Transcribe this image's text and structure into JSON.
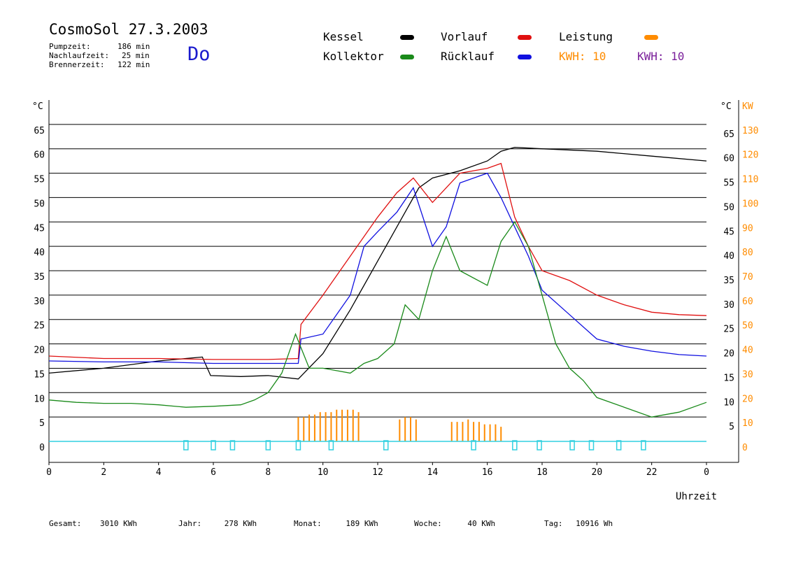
{
  "header": {
    "title": "CosmoSol 27.3.2003",
    "stats": [
      {
        "label": "Pumpzeit:",
        "value": "186 min"
      },
      {
        "label": "Nachlaufzeit:",
        "value": "25 min"
      },
      {
        "label": "Brennerzeit:",
        "value": "122 min"
      }
    ],
    "weekday": "Do"
  },
  "legend": {
    "kessel": "Kessel",
    "kollektor": "Kollektor",
    "vorlauf": "Vorlauf",
    "ruecklauf": "Rücklauf",
    "leistung": "Leistung",
    "kwh1_label": "KWH:",
    "kwh1_value": "10",
    "kwh2_label": "KWH:",
    "kwh2_value": "10",
    "colors": {
      "kessel": "#000000",
      "kollektor": "#1a8a1a",
      "vorlauf": "#e01010",
      "ruecklauf": "#1010e0",
      "leistung": "#ff8c00",
      "kwh2": "#7a1f9a",
      "pump": "#30d0e0"
    }
  },
  "footer": [
    {
      "label": "Gesamt:",
      "value": "3010 KWh"
    },
    {
      "label": "Jahr:",
      "value": "278 KWh"
    },
    {
      "label": "Monat:",
      "value": "189 KWh"
    },
    {
      "label": "Woche:",
      "value": "40 KWh"
    },
    {
      "label": "Tag:",
      "value": "10916 Wh"
    }
  ],
  "chart_data": {
    "type": "line",
    "xlabel": "Uhrzeit",
    "xlim": [
      0,
      24
    ],
    "x_ticks": [
      "0",
      "2",
      "4",
      "6",
      "8",
      "10",
      "12",
      "14",
      "16",
      "18",
      "20",
      "22",
      "0"
    ],
    "y_left_unit": "°C",
    "y_right_unit": "°C",
    "y_power_unit": "KW",
    "ylim": [
      -4.3,
      70
    ],
    "y_ticks": [
      0,
      5,
      10,
      15,
      20,
      25,
      30,
      35,
      40,
      45,
      50,
      55,
      60,
      65
    ],
    "y_left_labels": [
      "0",
      "5",
      "10",
      "15",
      "20",
      "25",
      "30",
      "35",
      "40",
      "45",
      "50",
      "55",
      "60",
      "65"
    ],
    "y_right_labels": [
      "5",
      "10",
      "15",
      "20",
      "25",
      "30",
      "35",
      "40",
      "45",
      "50",
      "55",
      "60",
      "65"
    ],
    "y_power_labels": [
      "0",
      "10",
      "20",
      "30",
      "40",
      "50",
      "60",
      "70",
      "80",
      "90",
      "100",
      "110",
      "120",
      "130"
    ],
    "grid": true,
    "series": [
      {
        "name": "Kessel",
        "key": "kessel",
        "points": [
          [
            0,
            14
          ],
          [
            2,
            15
          ],
          [
            4,
            16.5
          ],
          [
            5.6,
            17.3
          ],
          [
            5.9,
            13.5
          ],
          [
            7,
            13.3
          ],
          [
            8,
            13.5
          ],
          [
            9.1,
            12.8
          ],
          [
            10,
            18
          ],
          [
            11,
            27
          ],
          [
            12,
            37
          ],
          [
            12.5,
            42
          ],
          [
            13,
            47
          ],
          [
            13.5,
            52
          ],
          [
            14,
            54
          ],
          [
            15,
            55.5
          ],
          [
            16,
            57.5
          ],
          [
            16.5,
            59.5
          ],
          [
            17,
            60.3
          ],
          [
            18,
            60
          ],
          [
            20,
            59.5
          ],
          [
            22,
            58.5
          ],
          [
            24,
            57.5
          ]
        ]
      },
      {
        "name": "Vorlauf",
        "key": "vorlauf",
        "points": [
          [
            0,
            17.5
          ],
          [
            2,
            17
          ],
          [
            4,
            17
          ],
          [
            6,
            16.8
          ],
          [
            8,
            16.8
          ],
          [
            9.1,
            17
          ],
          [
            9.2,
            24
          ],
          [
            10,
            30
          ],
          [
            11,
            38
          ],
          [
            12,
            46
          ],
          [
            12.7,
            51
          ],
          [
            13.3,
            54
          ],
          [
            14,
            49
          ],
          [
            15,
            55
          ],
          [
            16,
            56
          ],
          [
            16.5,
            57
          ],
          [
            17,
            46
          ],
          [
            17.5,
            40
          ],
          [
            18,
            35
          ],
          [
            19,
            33
          ],
          [
            20,
            30
          ],
          [
            21,
            28
          ],
          [
            22,
            26.5
          ],
          [
            23,
            26
          ],
          [
            24,
            25.8
          ]
        ]
      },
      {
        "name": "Rücklauf",
        "key": "ruecklauf",
        "points": [
          [
            0,
            16.5
          ],
          [
            2,
            16.3
          ],
          [
            4,
            16.3
          ],
          [
            6,
            16
          ],
          [
            8,
            16
          ],
          [
            9.1,
            16
          ],
          [
            9.2,
            21
          ],
          [
            10,
            22
          ],
          [
            11,
            30
          ],
          [
            11.5,
            40
          ],
          [
            12,
            43
          ],
          [
            12.7,
            47
          ],
          [
            13.3,
            52
          ],
          [
            14,
            40
          ],
          [
            14.5,
            44
          ],
          [
            15,
            53
          ],
          [
            16,
            55
          ],
          [
            16.5,
            50
          ],
          [
            17,
            44
          ],
          [
            17.5,
            38
          ],
          [
            18,
            31
          ],
          [
            19,
            26
          ],
          [
            20,
            21
          ],
          [
            21,
            19.5
          ],
          [
            22,
            18.5
          ],
          [
            23,
            17.8
          ],
          [
            24,
            17.5
          ]
        ]
      },
      {
        "name": "Kollektor",
        "key": "kollektor",
        "points": [
          [
            0,
            8.5
          ],
          [
            1,
            8
          ],
          [
            2,
            7.8
          ],
          [
            3,
            7.8
          ],
          [
            4,
            7.5
          ],
          [
            5,
            7
          ],
          [
            6,
            7.2
          ],
          [
            7,
            7.5
          ],
          [
            7.5,
            8.5
          ],
          [
            8,
            10
          ],
          [
            8.5,
            14
          ],
          [
            9,
            22
          ],
          [
            9.5,
            15
          ],
          [
            10,
            15
          ],
          [
            10.5,
            14.5
          ],
          [
            11,
            14
          ],
          [
            11.5,
            16
          ],
          [
            12,
            17
          ],
          [
            12.6,
            20
          ],
          [
            13,
            28
          ],
          [
            13.5,
            25
          ],
          [
            14,
            35
          ],
          [
            14.5,
            42
          ],
          [
            15,
            35
          ],
          [
            16,
            32
          ],
          [
            16.5,
            41
          ],
          [
            17,
            45
          ],
          [
            17.5,
            40
          ],
          [
            18,
            30
          ],
          [
            18.5,
            20
          ],
          [
            19,
            15
          ],
          [
            19.5,
            12.5
          ],
          [
            20,
            9
          ],
          [
            21,
            7
          ],
          [
            22,
            5
          ],
          [
            23,
            6
          ],
          [
            24,
            8
          ]
        ]
      }
    ],
    "power_bars_time": [
      9.1,
      9.3,
      9.5,
      9.7,
      9.9,
      10.1,
      10.3,
      10.5,
      10.7,
      10.9,
      11.1,
      11.3,
      12.8,
      13.0,
      13.2,
      13.4,
      14.7,
      14.9,
      15.1,
      15.3,
      15.5,
      15.7,
      15.9,
      16.1,
      16.3,
      16.5
    ],
    "power_bars_kw": [
      10,
      10,
      11,
      11,
      12,
      12,
      12,
      13,
      13,
      13,
      13,
      12,
      9,
      10,
      10,
      9,
      8,
      8,
      8,
      9,
      8,
      8,
      7,
      7,
      7,
      6
    ],
    "pump_on_times": [
      5.0,
      6.0,
      6.7,
      8.0,
      9.1,
      10.3,
      12.3,
      15.5,
      17.0,
      17.9,
      19.1,
      19.8,
      20.8,
      21.7
    ]
  }
}
